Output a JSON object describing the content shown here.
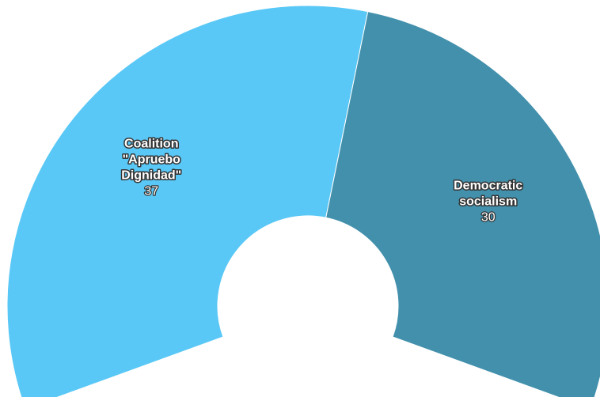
{
  "chart_data": {
    "type": "pie",
    "variant": "semi-donut",
    "slices": [
      {
        "name": "Coalition \"Apruebo Dignidad\"",
        "name_lines": [
          "Coalition",
          "\"Apruebo",
          "Dignidad\""
        ],
        "value": 37,
        "color": "#5ac8f6"
      },
      {
        "name": "Democratic socialism",
        "name_lines": [
          "Democratic",
          "socialism"
        ],
        "value": 30,
        "color": "#4290ac"
      }
    ]
  }
}
